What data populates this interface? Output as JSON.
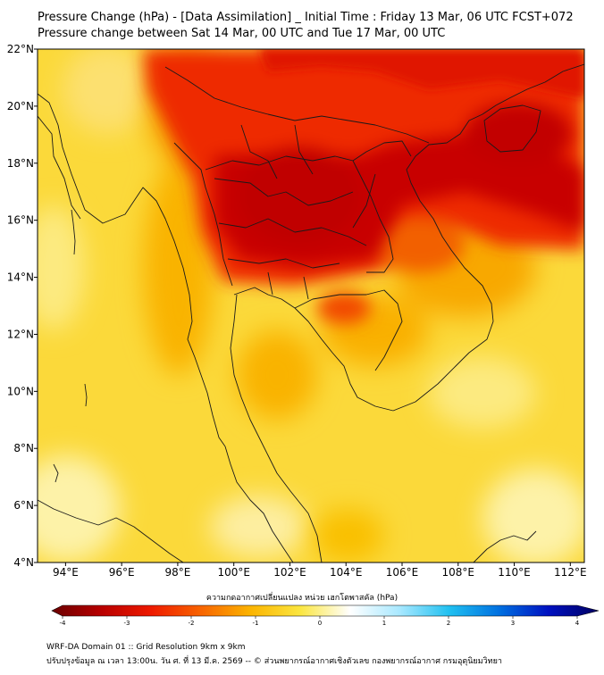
{
  "title_line1": "Pressure Change (hPa) - [Data Assimilation] _ Initial Time : Friday 13 Mar, 06 UTC FCST+072",
  "title_line2": "Pressure change between Sat 14 Mar, 00 UTC and Tue 17 Mar, 00 UTC",
  "map": {
    "lon_range": [
      93,
      112.5
    ],
    "lat_range": [
      4,
      22
    ],
    "lat_ticks": [
      {
        "value": 22,
        "label": "22°N"
      },
      {
        "value": 20,
        "label": "20°N"
      },
      {
        "value": 18,
        "label": "18°N"
      },
      {
        "value": 16,
        "label": "16°N"
      },
      {
        "value": 14,
        "label": "14°N"
      },
      {
        "value": 12,
        "label": "12°N"
      },
      {
        "value": 10,
        "label": "10°N"
      },
      {
        "value": 8,
        "label": "8°N"
      },
      {
        "value": 6,
        "label": "6°N"
      },
      {
        "value": 4,
        "label": "4°N"
      }
    ],
    "lon_ticks": [
      {
        "value": 94,
        "label": "94°E"
      },
      {
        "value": 96,
        "label": "96°E"
      },
      {
        "value": 98,
        "label": "98°E"
      },
      {
        "value": 100,
        "label": "100°E"
      },
      {
        "value": 102,
        "label": "102°E"
      },
      {
        "value": 104,
        "label": "104°E"
      },
      {
        "value": 106,
        "label": "106°E"
      },
      {
        "value": 108,
        "label": "108°E"
      },
      {
        "value": 110,
        "label": "110°E"
      },
      {
        "value": 112,
        "label": "112°E"
      }
    ],
    "colors": {
      "strong_fall": "#c60000",
      "fall": "#ee2a00",
      "moderate": "#f47a00",
      "weak": "#fbc200",
      "slight": "#fbe858",
      "near_zero": "#fdf6b8"
    }
  },
  "colorbar": {
    "title": "ความกดอากาศเปลี่ยนแปลง หน่วย เฮกโตพาสคัล (hPa)",
    "range": [
      -4,
      4
    ],
    "ticks": [
      {
        "value": -4,
        "label": "-4"
      },
      {
        "value": -3,
        "label": "-3"
      },
      {
        "value": -2,
        "label": "-2"
      },
      {
        "value": -1,
        "label": "-1"
      },
      {
        "value": 0,
        "label": "0"
      },
      {
        "value": 1,
        "label": "1"
      },
      {
        "value": 2,
        "label": "2"
      },
      {
        "value": 3,
        "label": "3"
      },
      {
        "value": 4,
        "label": "4"
      }
    ],
    "colors": [
      "#6a0000",
      "#b80000",
      "#ee1a00",
      "#f86400",
      "#fbb400",
      "#fbe640",
      "#ffffff",
      "#a8e8ff",
      "#20c0f0",
      "#0070e0",
      "#0010c0",
      "#000060"
    ]
  },
  "footer_line1": "WRF-DA Domain 01 :: Grid Resolution 9km x 9km",
  "footer_line2": "ปรับปรุงข้อมูล ณ เวลา 13:00น. วัน ศ. ที่ 13 มี.ค. 2569 -- © ส่วนพยากรณ์อากาศเชิงตัวเลข กองพยากรณ์อากาศ กรมอุตุนิยมวิทยา"
}
